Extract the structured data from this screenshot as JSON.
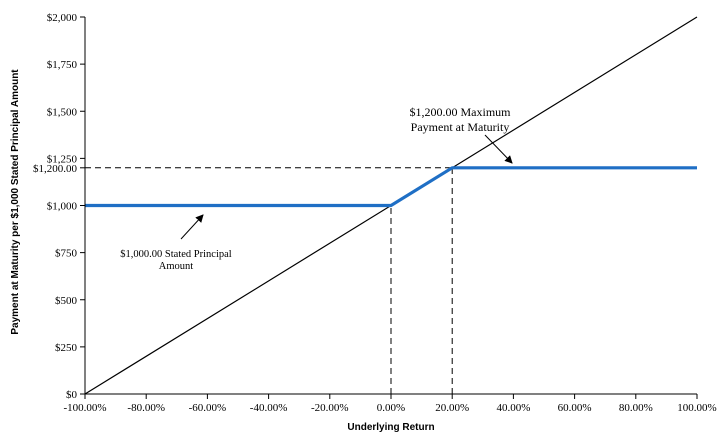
{
  "chart_data": {
    "type": "line",
    "title": "",
    "xlabel": "Underlying Return",
    "ylabel": "Payment at Maturity per $1,000 Stated Principal Amount",
    "xlim": [
      -100,
      100
    ],
    "ylim": [
      0,
      2000
    ],
    "grid": false,
    "legend": "none",
    "x_ticks": [
      -100,
      -80,
      -60,
      -40,
      -20,
      0,
      20,
      40,
      60,
      80,
      100
    ],
    "x_tick_labels": [
      "-100.00%",
      "-80.00%",
      "-60.00%",
      "-40.00%",
      "-20.00%",
      "0.00%",
      "20.00%",
      "40.00%",
      "60.00%",
      "80.00%",
      "100.00%"
    ],
    "y_ticks": [
      0,
      250,
      500,
      750,
      1000,
      1250,
      1750,
      2000
    ],
    "y_tick_labels": [
      "$0",
      "$250",
      "$500",
      "$750",
      "$1,000",
      "$1,250",
      "$1,750",
      "$2,000"
    ],
    "y_extra_tick": {
      "value": 1200,
      "label": "$1,200.00"
    },
    "y_mid_tick": {
      "value": 1500,
      "label": "$1,500"
    },
    "series": [
      {
        "name": "",
        "color": "#000000",
        "x": [
          -100,
          100
        ],
        "y": [
          0,
          2000
        ]
      },
      {
        "name": "",
        "color": "#1f6fc5",
        "x": [
          -100,
          0,
          20,
          100
        ],
        "y": [
          1000,
          1000,
          1200,
          1200
        ]
      }
    ],
    "reference_lines": [
      {
        "type": "vertical",
        "x": 0,
        "from_y": 0,
        "to_y": 1000
      },
      {
        "type": "vertical",
        "x": 20,
        "from_y": 0,
        "to_y": 1200
      },
      {
        "type": "horizontal",
        "y": 1200,
        "from_x": -100,
        "to_x": 20
      }
    ],
    "annotations": [
      {
        "lines": [
          "$1,200.00 Maximum",
          "Payment at Maturity"
        ]
      },
      {
        "lines": [
          "$1,000.00 Stated Principal",
          "Amount"
        ]
      }
    ]
  }
}
